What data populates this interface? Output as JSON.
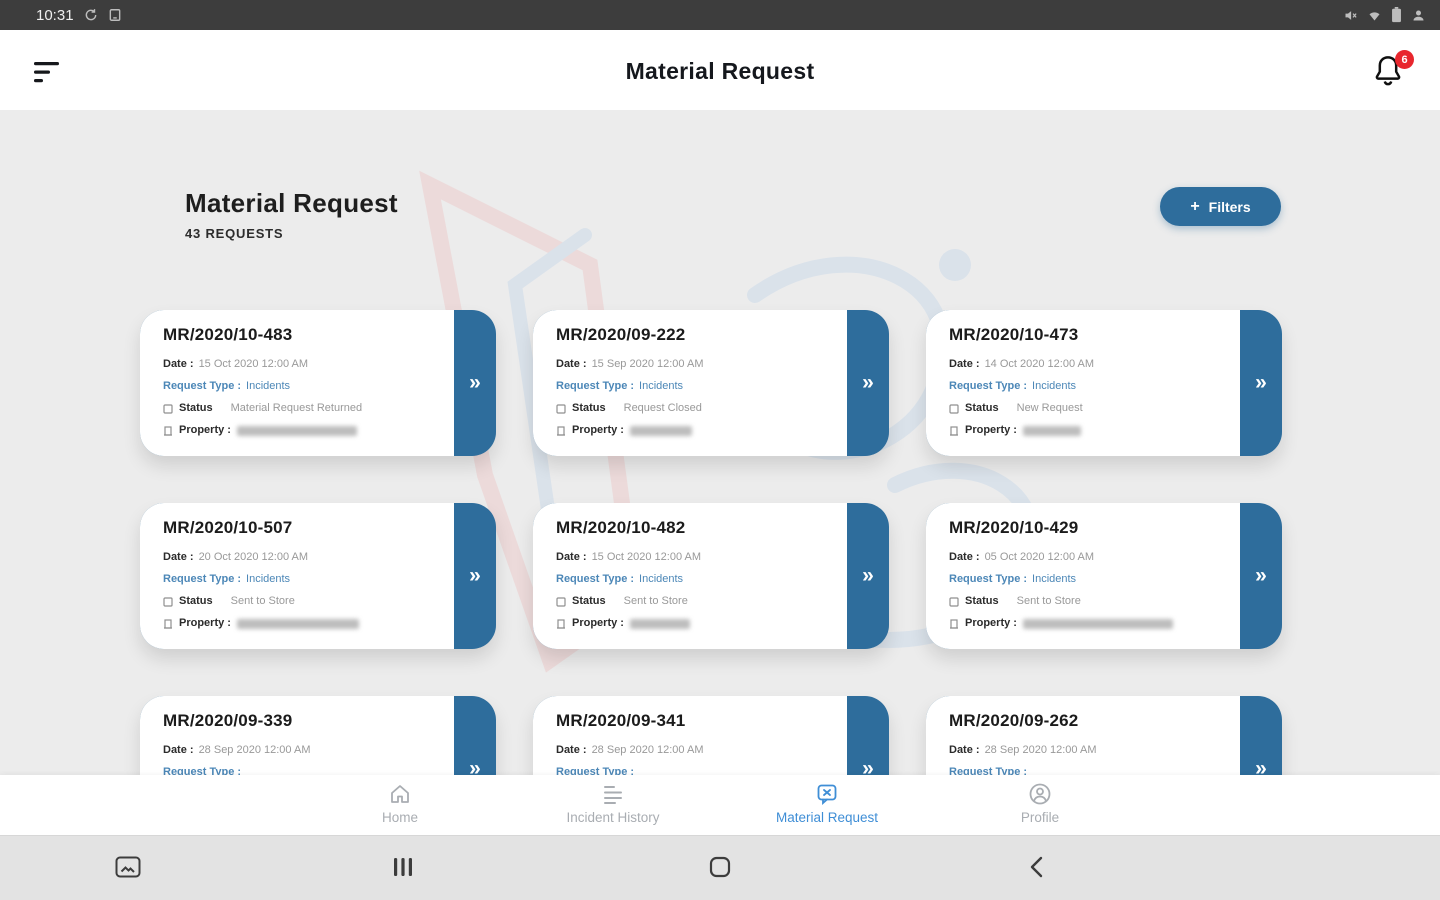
{
  "colors": {
    "primary_blue": "#2e6d9c",
    "link_blue": "#4c87b7",
    "active_nav_blue": "#3f8ed6",
    "badge_red": "#e8262d"
  },
  "status_bar": {
    "time": "10:31",
    "left_icons": [
      "sync-icon",
      "screenshot-icon"
    ],
    "right_icons": [
      "volume-mute-icon",
      "wifi-icon",
      "battery-icon",
      "user-icon"
    ]
  },
  "header": {
    "title": "Material Request",
    "menu_icon": "sort-menu-icon",
    "bell_icon": "bell-icon",
    "notification_badge": "6"
  },
  "page_header": {
    "title": "Material Request",
    "subtitle": "43 REQUESTS",
    "filters_button": "Filters",
    "filters_icon": "+"
  },
  "card_labels": {
    "date": "Date :",
    "request_type": "Request Type :",
    "status": "Status",
    "property": "Property :"
  },
  "card_chevron": "»",
  "fab_icon": "+",
  "cards": [
    {
      "id": "MR/2020/10-483",
      "date": "15 Oct 2020 12:00 AM",
      "request_type": "Incidents",
      "status": "Material Request Returned",
      "property_blur_width": 120
    },
    {
      "id": "MR/2020/09-222",
      "date": "15 Sep 2020 12:00 AM",
      "request_type": "Incidents",
      "status": "Request Closed",
      "property_blur_width": 62
    },
    {
      "id": "MR/2020/10-473",
      "date": "14 Oct 2020 12:00 AM",
      "request_type": "Incidents",
      "status": "New Request",
      "property_blur_width": 58
    },
    {
      "id": "MR/2020/10-507",
      "date": "20 Oct 2020 12:00 AM",
      "request_type": "Incidents",
      "status": "Sent to Store",
      "property_blur_width": 122
    },
    {
      "id": "MR/2020/10-482",
      "date": "15 Oct 2020 12:00 AM",
      "request_type": "Incidents",
      "status": "Sent to Store",
      "property_blur_width": 60
    },
    {
      "id": "MR/2020/10-429",
      "date": "05 Oct 2020 12:00 AM",
      "request_type": "Incidents",
      "status": "Sent to Store",
      "property_blur_width": 150
    },
    {
      "id": "MR/2020/09-339",
      "date": "28 Sep 2020 12:00 AM",
      "request_type": "",
      "status": "",
      "property_blur_width": 0
    },
    {
      "id": "MR/2020/09-341",
      "date": "28 Sep 2020 12:00 AM",
      "request_type": "",
      "status": "",
      "property_blur_width": 0
    },
    {
      "id": "MR/2020/09-262",
      "date": "28 Sep 2020 12:00 AM",
      "request_type": "",
      "status": "",
      "property_blur_width": 0
    }
  ],
  "bottom_nav": {
    "items": [
      {
        "label": "Home",
        "icon": "home-icon",
        "active": false
      },
      {
        "label": "Incident History",
        "icon": "history-list-icon",
        "active": false
      },
      {
        "label": "Material Request",
        "icon": "request-doc-icon",
        "active": true
      },
      {
        "label": "Profile",
        "icon": "profile-icon",
        "active": false
      }
    ]
  },
  "system_nav": {
    "icons": [
      "screenshot-icon",
      "recents-icon",
      "home-icon",
      "back-icon"
    ]
  }
}
